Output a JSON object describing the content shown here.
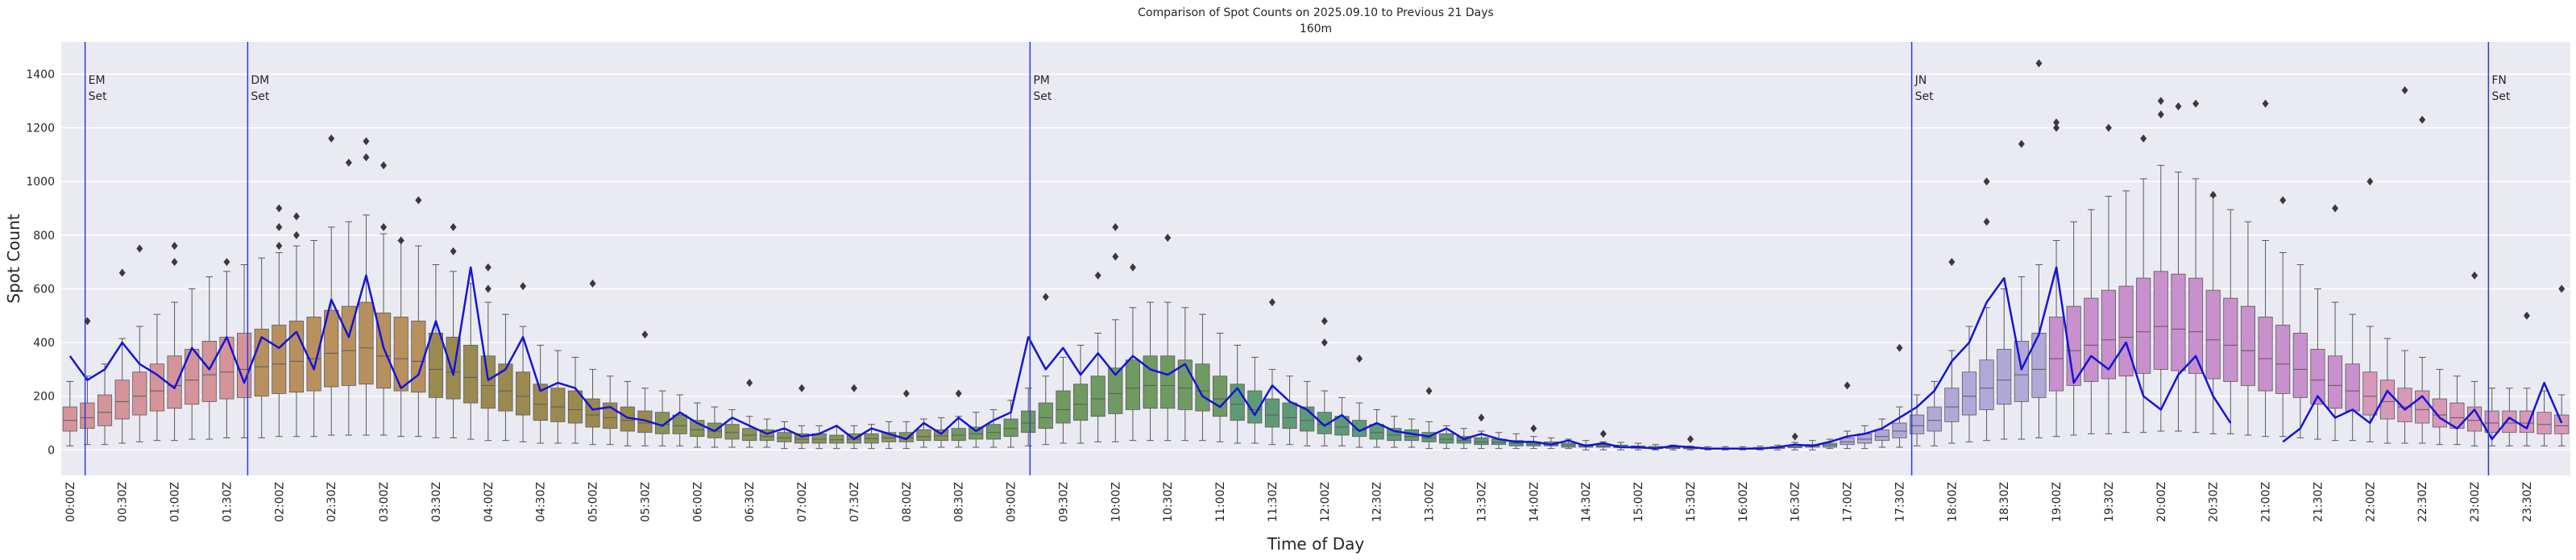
{
  "chart_data": {
    "type": "box",
    "title": "Comparison of Spot Counts on 2025.09.10 to Previous 21 Days",
    "subtitle": "160m",
    "x_label": "Time of Day",
    "y_label": "Spot Count",
    "ylim": [
      -95,
      1520
    ],
    "yticks": [
      0,
      200,
      400,
      600,
      800,
      1000,
      1200,
      1400
    ],
    "grid": true,
    "categories": [
      "00:00Z",
      null,
      null,
      "00:30Z",
      null,
      null,
      "01:00Z",
      null,
      null,
      "01:30Z",
      null,
      null,
      "02:00Z",
      null,
      null,
      "02:30Z",
      null,
      null,
      "03:00Z",
      null,
      null,
      "03:30Z",
      null,
      null,
      "04:00Z",
      null,
      null,
      "04:30Z",
      null,
      null,
      "05:00Z",
      null,
      null,
      "05:30Z",
      null,
      null,
      "06:00Z",
      null,
      null,
      "06:30Z",
      null,
      null,
      "07:00Z",
      null,
      null,
      "07:30Z",
      null,
      null,
      "08:00Z",
      null,
      null,
      "08:30Z",
      null,
      null,
      "09:00Z",
      null,
      null,
      "09:30Z",
      null,
      null,
      "10:00Z",
      null,
      null,
      "10:30Z",
      null,
      null,
      "11:00Z",
      null,
      null,
      "11:30Z",
      null,
      null,
      "12:00Z",
      null,
      null,
      "12:30Z",
      null,
      null,
      "13:00Z",
      null,
      null,
      "13:30Z",
      null,
      null,
      "14:00Z",
      null,
      null,
      "14:30Z",
      null,
      null,
      "15:00Z",
      null,
      null,
      "15:30Z",
      null,
      null,
      "16:00Z",
      null,
      null,
      "16:30Z",
      null,
      null,
      "17:00Z",
      null,
      null,
      "17:30Z",
      null,
      null,
      "18:00Z",
      null,
      null,
      "18:30Z",
      null,
      null,
      "19:00Z",
      null,
      null,
      "19:30Z",
      null,
      null,
      "20:00Z",
      null,
      null,
      "20:30Z",
      null,
      null,
      "21:00Z",
      null,
      null,
      "21:30Z",
      null,
      null,
      "22:00Z",
      null,
      null,
      "22:30Z",
      null,
      null,
      "23:00Z",
      null,
      null,
      "23:30Z",
      null,
      null
    ],
    "whisker_low": [
      15,
      20,
      20,
      25,
      30,
      35,
      35,
      40,
      40,
      45,
      45,
      45,
      50,
      50,
      50,
      55,
      55,
      55,
      55,
      50,
      50,
      45,
      45,
      40,
      35,
      35,
      30,
      25,
      25,
      25,
      20,
      20,
      15,
      15,
      15,
      15,
      10,
      10,
      10,
      10,
      10,
      5,
      5,
      5,
      5,
      5,
      5,
      5,
      5,
      10,
      10,
      10,
      10,
      10,
      10,
      15,
      20,
      25,
      25,
      30,
      30,
      35,
      35,
      35,
      35,
      35,
      30,
      25,
      25,
      20,
      20,
      15,
      15,
      15,
      10,
      10,
      10,
      10,
      5,
      5,
      5,
      5,
      5,
      5,
      5,
      5,
      5,
      0,
      0,
      0,
      0,
      0,
      0,
      0,
      0,
      0,
      0,
      0,
      0,
      0,
      0,
      5,
      5,
      5,
      10,
      10,
      15,
      15,
      25,
      30,
      35,
      40,
      40,
      45,
      50,
      55,
      60,
      60,
      65,
      65,
      70,
      70,
      65,
      60,
      60,
      55,
      50,
      50,
      45,
      40,
      35,
      35,
      30,
      25,
      25,
      25,
      20,
      20,
      15,
      15,
      15,
      15,
      15,
      15
    ],
    "q1": [
      70,
      80,
      90,
      115,
      130,
      145,
      155,
      170,
      180,
      190,
      195,
      200,
      210,
      215,
      220,
      235,
      240,
      245,
      230,
      220,
      215,
      195,
      190,
      175,
      155,
      145,
      130,
      110,
      105,
      100,
      85,
      80,
      70,
      65,
      60,
      60,
      50,
      45,
      40,
      35,
      35,
      30,
      25,
      25,
      25,
      25,
      25,
      30,
      30,
      35,
      35,
      35,
      40,
      40,
      50,
      65,
      80,
      100,
      110,
      125,
      135,
      150,
      155,
      155,
      150,
      145,
      125,
      110,
      100,
      85,
      80,
      70,
      60,
      55,
      50,
      40,
      35,
      35,
      30,
      25,
      25,
      20,
      20,
      15,
      15,
      15,
      10,
      10,
      10,
      8,
      6,
      5,
      5,
      4,
      3,
      3,
      3,
      4,
      5,
      8,
      10,
      10,
      20,
      25,
      35,
      45,
      60,
      70,
      105,
      130,
      150,
      170,
      180,
      195,
      220,
      240,
      255,
      265,
      275,
      285,
      300,
      295,
      285,
      265,
      255,
      240,
      220,
      210,
      195,
      170,
      155,
      145,
      130,
      115,
      105,
      100,
      85,
      80,
      70,
      65,
      65,
      65,
      60,
      60
    ],
    "median": [
      110,
      120,
      140,
      180,
      200,
      220,
      240,
      260,
      280,
      290,
      300,
      310,
      320,
      330,
      340,
      360,
      370,
      380,
      350,
      340,
      330,
      300,
      290,
      270,
      240,
      220,
      200,
      170,
      160,
      150,
      130,
      120,
      110,
      100,
      95,
      90,
      75,
      70,
      65,
      55,
      50,
      45,
      40,
      40,
      38,
      40,
      42,
      45,
      45,
      50,
      52,
      55,
      60,
      65,
      80,
      100,
      120,
      150,
      170,
      190,
      210,
      230,
      240,
      240,
      230,
      220,
      190,
      170,
      150,
      130,
      120,
      110,
      95,
      85,
      75,
      65,
      55,
      50,
      45,
      40,
      35,
      30,
      28,
      25,
      22,
      20,
      18,
      15,
      14,
      12,
      10,
      9,
      8,
      6,
      5,
      5,
      5,
      6,
      8,
      12,
      15,
      18,
      30,
      40,
      50,
      70,
      90,
      110,
      160,
      200,
      230,
      260,
      280,
      300,
      340,
      370,
      390,
      410,
      420,
      440,
      460,
      450,
      440,
      410,
      390,
      370,
      340,
      320,
      300,
      260,
      240,
      220,
      200,
      180,
      160,
      150,
      130,
      120,
      110,
      100,
      100,
      100,
      95,
      90
    ],
    "q3": [
      160,
      175,
      205,
      260,
      290,
      320,
      350,
      375,
      405,
      420,
      435,
      450,
      465,
      480,
      495,
      520,
      535,
      550,
      510,
      495,
      480,
      435,
      420,
      390,
      350,
      320,
      290,
      245,
      230,
      220,
      190,
      175,
      160,
      145,
      140,
      130,
      110,
      100,
      95,
      80,
      75,
      65,
      60,
      60,
      55,
      60,
      60,
      65,
      65,
      75,
      75,
      80,
      85,
      95,
      115,
      145,
      175,
      220,
      245,
      275,
      305,
      335,
      350,
      350,
      335,
      320,
      275,
      245,
      220,
      190,
      175,
      160,
      140,
      125,
      110,
      95,
      80,
      75,
      65,
      60,
      50,
      45,
      40,
      35,
      30,
      30,
      25,
      20,
      20,
      18,
      15,
      13,
      12,
      9,
      7,
      7,
      7,
      9,
      12,
      18,
      20,
      25,
      45,
      60,
      75,
      100,
      130,
      160,
      230,
      290,
      335,
      375,
      405,
      435,
      495,
      535,
      565,
      595,
      610,
      640,
      665,
      655,
      640,
      595,
      565,
      535,
      495,
      465,
      435,
      375,
      350,
      320,
      290,
      260,
      230,
      220,
      190,
      175,
      160,
      145,
      145,
      145,
      140,
      130
    ],
    "whisker_high": [
      255,
      275,
      320,
      415,
      460,
      505,
      550,
      600,
      645,
      665,
      690,
      715,
      735,
      760,
      780,
      830,
      850,
      875,
      805,
      780,
      760,
      690,
      665,
      620,
      550,
      505,
      460,
      390,
      370,
      345,
      300,
      275,
      255,
      230,
      220,
      205,
      175,
      160,
      150,
      125,
      115,
      105,
      90,
      90,
      85,
      90,
      95,
      105,
      105,
      115,
      120,
      125,
      140,
      150,
      185,
      230,
      275,
      345,
      390,
      435,
      485,
      530,
      550,
      550,
      530,
      505,
      435,
      390,
      345,
      300,
      275,
      255,
      220,
      195,
      175,
      150,
      125,
      115,
      105,
      90,
      80,
      70,
      65,
      60,
      50,
      45,
      40,
      35,
      30,
      28,
      25,
      20,
      18,
      14,
      12,
      12,
      12,
      14,
      18,
      28,
      35,
      40,
      70,
      90,
      115,
      160,
      205,
      255,
      370,
      460,
      530,
      600,
      645,
      690,
      780,
      850,
      895,
      945,
      965,
      1010,
      1060,
      1035,
      1010,
      945,
      895,
      850,
      780,
      735,
      690,
      600,
      550,
      505,
      460,
      415,
      370,
      345,
      300,
      275,
      255,
      230,
      230,
      230,
      220,
      205
    ],
    "colors": [
      "#d4949a",
      "#d4949a",
      "#d4949a",
      "#d4949a",
      "#d4949a",
      "#d4949a",
      "#d4949a",
      "#d4949a",
      "#d4949a",
      "#d4949a",
      "#d4949a",
      "#b8905e",
      "#b8905e",
      "#b8905e",
      "#b8905e",
      "#b8905e",
      "#b8905e",
      "#b8905e",
      "#b8905e",
      "#b8905e",
      "#b8905e",
      "#9a8a50",
      "#9a8a50",
      "#9a8a50",
      "#9a8a50",
      "#9a8a50",
      "#9a8a50",
      "#9a8a50",
      "#9a8a50",
      "#9a8a50",
      "#9a8a50",
      "#9a8a50",
      "#9a8a50",
      "#9a8a50",
      "#88935a",
      "#88935a",
      "#88935a",
      "#88935a",
      "#88935a",
      "#88935a",
      "#88935a",
      "#88935a",
      "#88935a",
      "#88935a",
      "#88935a",
      "#88935a",
      "#88935a",
      "#88935a",
      "#88935a",
      "#88935a",
      "#88935a",
      "#6f9a62",
      "#6f9a62",
      "#6f9a62",
      "#6f9a62",
      "#6f9a62",
      "#6f9a62",
      "#6f9a62",
      "#6f9a62",
      "#6f9a62",
      "#6f9a62",
      "#6f9a62",
      "#6f9a62",
      "#6f9a62",
      "#6f9a62",
      "#6f9a62",
      "#6f9a62",
      "#5e9a76",
      "#5e9a76",
      "#5e9a76",
      "#5e9a76",
      "#5e9a76",
      "#5e9a76",
      "#5e9a76",
      "#5e9a76",
      "#5e9a76",
      "#5e9a76",
      "#5e9a76",
      "#5e9a76",
      "#5e9a76",
      "#5e9a76",
      "#5e9a76",
      "#5e9a76",
      "#5e9a76",
      "#5e9a76",
      "#5e9a76",
      "#5e9a76",
      "#5e9a76",
      "#5e9a76",
      "#5e9a76",
      "#5e9a76",
      "#5e9a76",
      "#5e9a76",
      "#5e9a76",
      "#5e9a76",
      "#5e9a76",
      "#5e9a76",
      "#7aa4a0",
      "#7aa4a0",
      "#7aa4a0",
      "#7aa4a0",
      "#7aa4a0",
      "#b2a8d8",
      "#b2a8d8",
      "#b2a8d8",
      "#b2a8d8",
      "#b2a8d8",
      "#b2a8d8",
      "#b2a8d8",
      "#b2a8d8",
      "#b2a8d8",
      "#b2a8d8",
      "#b2a8d8",
      "#b2a8d8",
      "#c890cc",
      "#c890cc",
      "#c890cc",
      "#c890cc",
      "#c890cc",
      "#c890cc",
      "#c890cc",
      "#c890cc",
      "#c890cc",
      "#c890cc",
      "#c890cc",
      "#c890cc",
      "#c890cc",
      "#c890cc",
      "#c890cc",
      "#c890cc",
      "#c890cc",
      "#c890cc",
      "#d898b8",
      "#d898b8",
      "#d898b8",
      "#d898b8",
      "#d898b8",
      "#d898b8",
      "#d898b8",
      "#d898b8",
      "#d898b8",
      "#d898b8",
      "#d898b8",
      "#d898b8"
    ],
    "outliers": [
      {
        "at": 1,
        "value": 480
      },
      {
        "at": 3,
        "value": 660
      },
      {
        "at": 4,
        "value": 750
      },
      {
        "at": 6,
        "value": 760
      },
      {
        "at": 6,
        "value": 700
      },
      {
        "at": 9,
        "value": 700
      },
      {
        "at": 12,
        "value": 900
      },
      {
        "at": 12,
        "value": 830
      },
      {
        "at": 12,
        "value": 760
      },
      {
        "at": 13,
        "value": 870
      },
      {
        "at": 13,
        "value": 800
      },
      {
        "at": 15,
        "value": 1160
      },
      {
        "at": 16,
        "value": 1070
      },
      {
        "at": 17,
        "value": 1150
      },
      {
        "at": 17,
        "value": 1090
      },
      {
        "at": 18,
        "value": 1060
      },
      {
        "at": 18,
        "value": 830
      },
      {
        "at": 19,
        "value": 780
      },
      {
        "at": 20,
        "value": 930
      },
      {
        "at": 22,
        "value": 830
      },
      {
        "at": 22,
        "value": 740
      },
      {
        "at": 24,
        "value": 680
      },
      {
        "at": 24,
        "value": 600
      },
      {
        "at": 26,
        "value": 610
      },
      {
        "at": 30,
        "value": 620
      },
      {
        "at": 33,
        "value": 430
      },
      {
        "at": 39,
        "value": 250
      },
      {
        "at": 42,
        "value": 230
      },
      {
        "at": 45,
        "value": 230
      },
      {
        "at": 48,
        "value": 210
      },
      {
        "at": 51,
        "value": 210
      },
      {
        "at": 56,
        "value": 570
      },
      {
        "at": 59,
        "value": 650
      },
      {
        "at": 60,
        "value": 830
      },
      {
        "at": 60,
        "value": 720
      },
      {
        "at": 61,
        "value": 680
      },
      {
        "at": 63,
        "value": 790
      },
      {
        "at": 69,
        "value": 550
      },
      {
        "at": 72,
        "value": 480
      },
      {
        "at": 72,
        "value": 400
      },
      {
        "at": 74,
        "value": 340
      },
      {
        "at": 78,
        "value": 220
      },
      {
        "at": 81,
        "value": 120
      },
      {
        "at": 84,
        "value": 80
      },
      {
        "at": 88,
        "value": 60
      },
      {
        "at": 93,
        "value": 40
      },
      {
        "at": 99,
        "value": 50
      },
      {
        "at": 102,
        "value": 240
      },
      {
        "at": 105,
        "value": 380
      },
      {
        "at": 108,
        "value": 700
      },
      {
        "at": 110,
        "value": 850
      },
      {
        "at": 110,
        "value": 1000
      },
      {
        "at": 112,
        "value": 1140
      },
      {
        "at": 113,
        "value": 1440
      },
      {
        "at": 114,
        "value": 1200
      },
      {
        "at": 114,
        "value": 1220
      },
      {
        "at": 117,
        "value": 1200
      },
      {
        "at": 119,
        "value": 1160
      },
      {
        "at": 120,
        "value": 1300
      },
      {
        "at": 120,
        "value": 1250
      },
      {
        "at": 121,
        "value": 1280
      },
      {
        "at": 122,
        "value": 1290
      },
      {
        "at": 123,
        "value": 950
      },
      {
        "at": 126,
        "value": 1290
      },
      {
        "at": 127,
        "value": 930
      },
      {
        "at": 130,
        "value": 900
      },
      {
        "at": 132,
        "value": 1000
      },
      {
        "at": 134,
        "value": 1340
      },
      {
        "at": 135,
        "value": 1230
      },
      {
        "at": 138,
        "value": 650
      },
      {
        "at": 141,
        "value": 500
      },
      {
        "at": 143,
        "value": 600
      }
    ],
    "line": {
      "color": "#1414d8",
      "values": [
        350,
        260,
        300,
        400,
        320,
        280,
        230,
        380,
        300,
        420,
        250,
        420,
        380,
        440,
        300,
        560,
        420,
        650,
        380,
        230,
        280,
        480,
        280,
        680,
        260,
        300,
        420,
        220,
        250,
        230,
        150,
        160,
        120,
        110,
        90,
        140,
        100,
        70,
        120,
        90,
        60,
        80,
        50,
        60,
        90,
        40,
        80,
        60,
        40,
        100,
        60,
        120,
        70,
        110,
        140,
        420,
        300,
        380,
        280,
        360,
        280,
        350,
        300,
        280,
        320,
        200,
        160,
        230,
        130,
        240,
        180,
        150,
        90,
        130,
        70,
        100,
        70,
        60,
        50,
        80,
        40,
        60,
        40,
        30,
        30,
        20,
        35,
        15,
        25,
        10,
        10,
        5,
        15,
        10,
        5,
        5,
        5,
        5,
        10,
        20,
        15,
        30,
        50,
        60,
        80,
        120,
        160,
        220,
        330,
        400,
        550,
        640,
        300,
        430,
        680,
        250,
        350,
        300,
        400,
        200,
        150,
        280,
        350,
        200,
        100,
        null,
        null,
        30,
        80,
        200,
        120,
        150,
        100,
        220,
        150,
        200,
        120,
        80,
        150,
        40,
        120,
        80,
        250,
        100
      ]
    },
    "vline_color": "#2a3ccc",
    "annotations": [
      {
        "lines": [
          "EM",
          "Set"
        ],
        "x": 0.87
      },
      {
        "lines": [
          "DM",
          "Set"
        ],
        "x": 10.2
      },
      {
        "lines": [
          "PM",
          "Set"
        ],
        "x": 55.1
      },
      {
        "lines": [
          "JN",
          "Set"
        ],
        "x": 105.7
      },
      {
        "lines": [
          "FN",
          "Set"
        ],
        "x": 138.8
      }
    ]
  }
}
